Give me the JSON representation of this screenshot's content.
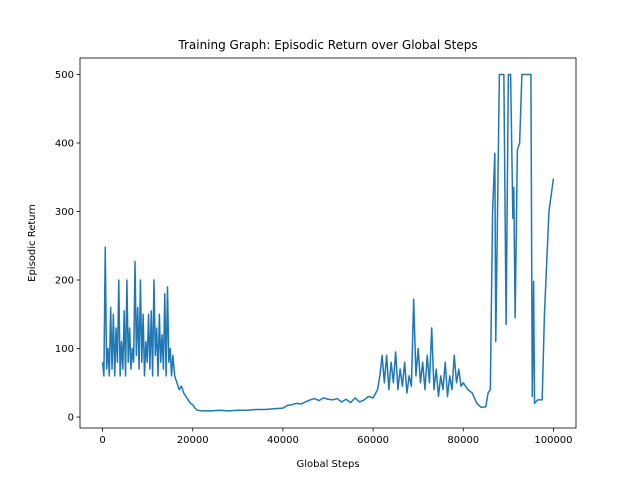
{
  "chart_data": {
    "type": "line",
    "title": "Training Graph: Episodic Return over Global Steps",
    "xlabel": "Global Steps",
    "ylabel": "Episodic Return",
    "color": "#1f77b4",
    "xlim": [
      -5000,
      105000
    ],
    "ylim": [
      -16,
      524
    ],
    "xticks": [
      0,
      20000,
      40000,
      60000,
      80000,
      100000
    ],
    "yticks": [
      0,
      100,
      200,
      300,
      400,
      500
    ],
    "x": [
      0,
      300,
      600,
      900,
      1200,
      1500,
      1800,
      2100,
      2400,
      2700,
      3000,
      3300,
      3600,
      3900,
      4200,
      4500,
      4800,
      5100,
      5400,
      5700,
      6000,
      6300,
      6600,
      6900,
      7200,
      7500,
      7800,
      8100,
      8400,
      8700,
      9000,
      9300,
      9600,
      9900,
      10200,
      10500,
      10800,
      11100,
      11400,
      11700,
      12000,
      12300,
      12600,
      12900,
      13200,
      13500,
      13800,
      14100,
      14400,
      14700,
      15000,
      15300,
      15600,
      16000,
      16500,
      17000,
      17500,
      18000,
      18500,
      19000,
      19500,
      20000,
      20500,
      21000,
      22000,
      24000,
      26000,
      28000,
      30000,
      32000,
      34000,
      36000,
      38000,
      40000,
      41000,
      42000,
      43000,
      44000,
      45000,
      46000,
      47000,
      48000,
      49000,
      50000,
      51000,
      52000,
      53000,
      54000,
      55000,
      56000,
      57000,
      58000,
      59000,
      60000,
      61000,
      61500,
      62000,
      62500,
      63000,
      63500,
      64000,
      64500,
      65000,
      65500,
      66000,
      66500,
      67000,
      67500,
      68000,
      68500,
      69000,
      69500,
      70000,
      70500,
      71000,
      71500,
      72000,
      72500,
      73000,
      73500,
      74000,
      74500,
      75000,
      75500,
      76000,
      76500,
      77000,
      77500,
      78000,
      78500,
      79000,
      79500,
      80000,
      81000,
      82000,
      83000,
      84000,
      85000,
      85500,
      86000,
      86500,
      87000,
      87200,
      87500,
      88000,
      89000,
      89500,
      90000,
      90500,
      91000,
      91200,
      91500,
      92000,
      92500,
      93000,
      94000,
      94500,
      95000,
      95300,
      95600,
      95800,
      96500,
      97500,
      98000,
      99000,
      100000
    ],
    "values": [
      80,
      60,
      248,
      70,
      100,
      60,
      160,
      70,
      150,
      60,
      130,
      80,
      200,
      60,
      110,
      70,
      155,
      60,
      200,
      80,
      130,
      70,
      100,
      80,
      227,
      90,
      160,
      70,
      200,
      80,
      150,
      60,
      110,
      80,
      150,
      70,
      155,
      60,
      200,
      90,
      130,
      60,
      150,
      80,
      120,
      70,
      180,
      60,
      190,
      80,
      100,
      60,
      90,
      60,
      50,
      40,
      45,
      35,
      30,
      25,
      20,
      18,
      13,
      10,
      9,
      9,
      10,
      9,
      10,
      10,
      11,
      11,
      12,
      13,
      17,
      18,
      20,
      19,
      22,
      25,
      27,
      24,
      28,
      26,
      25,
      27,
      22,
      26,
      21,
      28,
      22,
      25,
      30,
      28,
      40,
      60,
      90,
      50,
      90,
      40,
      80,
      50,
      95,
      40,
      70,
      45,
      80,
      35,
      60,
      45,
      172,
      60,
      100,
      50,
      80,
      40,
      90,
      50,
      130,
      40,
      70,
      30,
      60,
      40,
      80,
      30,
      60,
      40,
      90,
      50,
      70,
      45,
      50,
      40,
      35,
      20,
      14,
      15,
      35,
      40,
      300,
      385,
      110,
      250,
      500,
      500,
      135,
      500,
      500,
      290,
      335,
      145,
      390,
      400,
      500,
      500,
      500,
      500,
      30,
      198,
      20,
      25,
      25,
      150,
      300,
      348
    ]
  }
}
